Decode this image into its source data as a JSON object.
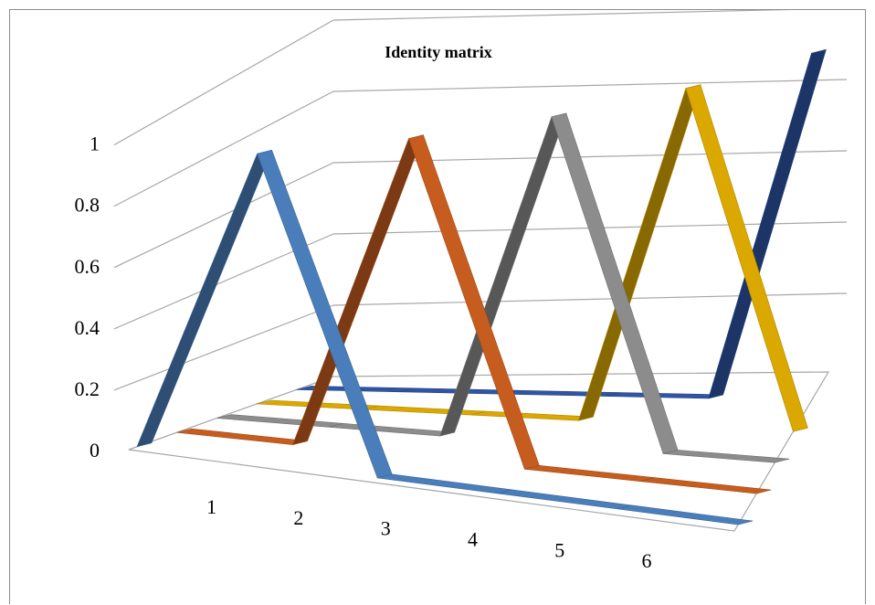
{
  "chart_data": {
    "type": "line",
    "style": "3d-ribbon",
    "title": "Identity matrix",
    "categories": [
      "1",
      "2",
      "3",
      "4",
      "5",
      "6"
    ],
    "y_ticks": [
      "0",
      "0.2",
      "0.4",
      "0.6",
      "0.8",
      "1"
    ],
    "ylim": [
      0,
      1
    ],
    "grid": true,
    "legend": "none",
    "series": [
      {
        "values": [
          0,
          1,
          0,
          0,
          0,
          0
        ],
        "color": "#4a7ebb"
      },
      {
        "values": [
          0,
          0,
          1,
          0,
          0,
          0
        ],
        "color": "#c65d1f"
      },
      {
        "values": [
          0,
          0,
          0,
          1,
          0,
          0
        ],
        "color": "#8c8c8c"
      },
      {
        "values": [
          0,
          0,
          0,
          0,
          1,
          0
        ],
        "color": "#dba800"
      },
      {
        "values": [
          0,
          0,
          0,
          0,
          0,
          1
        ],
        "color": "#2f55a4"
      }
    ]
  }
}
